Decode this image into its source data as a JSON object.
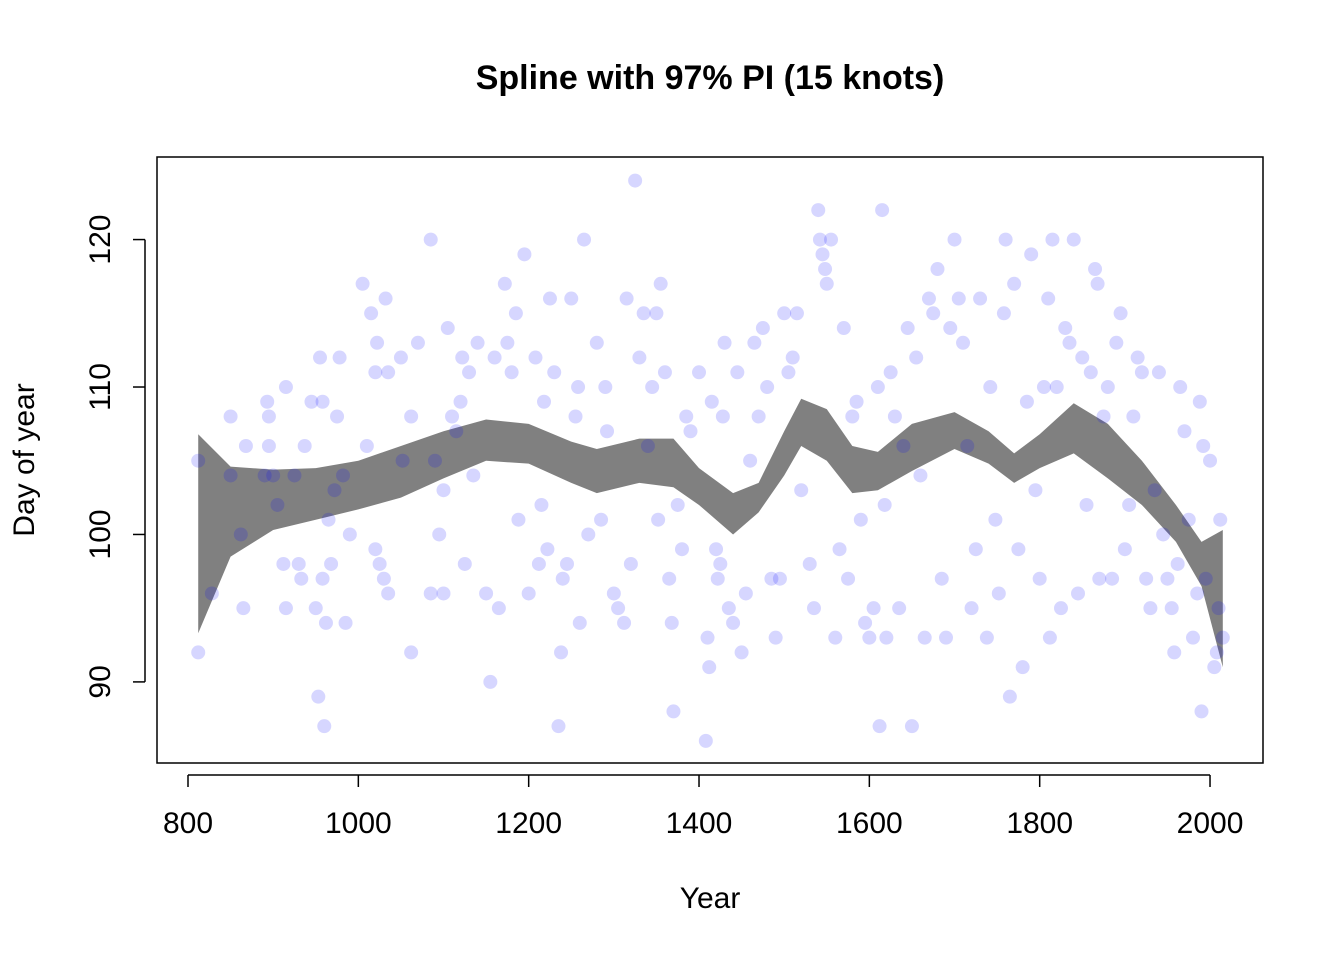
{
  "chart_data": {
    "type": "scatter",
    "title": "Spline with 97% PI (15 knots)",
    "x_label": "Year",
    "y_label": "Day of year",
    "xlim": [
      763.6,
      2062.2
    ],
    "ylim": [
      84.5,
      125.6
    ],
    "xticks": [
      800,
      1000,
      1200,
      1400,
      1600,
      1800,
      2000
    ],
    "yticks": [
      90,
      100,
      110,
      120
    ],
    "grid": false,
    "band": {
      "color": "#808080",
      "x": [
        812,
        850,
        900,
        950,
        1000,
        1050,
        1100,
        1150,
        1200,
        1250,
        1280,
        1330,
        1370,
        1400,
        1440,
        1470,
        1500,
        1520,
        1550,
        1580,
        1610,
        1650,
        1700,
        1740,
        1770,
        1800,
        1840,
        1880,
        1920,
        1960,
        1990,
        2015
      ],
      "lower": [
        93.3,
        98.5,
        100.3,
        101.0,
        101.7,
        102.5,
        103.8,
        105.0,
        104.8,
        103.5,
        102.8,
        103.5,
        103.2,
        102.0,
        100.0,
        101.5,
        104.0,
        106.0,
        105.0,
        102.8,
        103.0,
        104.3,
        105.8,
        104.8,
        103.5,
        104.5,
        105.5,
        103.8,
        102.0,
        99.5,
        96.5,
        91.0
      ],
      "upper": [
        106.8,
        104.6,
        104.4,
        104.5,
        105.0,
        106.0,
        107.0,
        107.8,
        107.5,
        106.3,
        105.8,
        106.5,
        106.5,
        104.5,
        102.8,
        103.5,
        107.0,
        109.2,
        108.5,
        106.0,
        105.6,
        107.5,
        108.3,
        107.0,
        105.5,
        106.8,
        108.9,
        107.5,
        105.0,
        102.0,
        99.5,
        100.3
      ]
    },
    "points": {
      "color": "#0000ff",
      "x": [
        812,
        812,
        828,
        850,
        850,
        862,
        865,
        868,
        890,
        893,
        895,
        895,
        900,
        905,
        912,
        915,
        915,
        925,
        930,
        933,
        937,
        945,
        950,
        953,
        955,
        958,
        958,
        960,
        962,
        965,
        968,
        972,
        975,
        978,
        982,
        985,
        990,
        1005,
        1010,
        1015,
        1020,
        1020,
        1022,
        1025,
        1030,
        1032,
        1035,
        1035,
        1050,
        1052,
        1062,
        1062,
        1070,
        1085,
        1085,
        1090,
        1095,
        1100,
        1100,
        1105,
        1110,
        1115,
        1120,
        1122,
        1125,
        1130,
        1135,
        1140,
        1150,
        1155,
        1160,
        1165,
        1172,
        1175,
        1180,
        1185,
        1188,
        1195,
        1200,
        1208,
        1212,
        1215,
        1218,
        1222,
        1225,
        1230,
        1235,
        1238,
        1240,
        1245,
        1250,
        1255,
        1258,
        1260,
        1265,
        1270,
        1280,
        1285,
        1290,
        1292,
        1300,
        1305,
        1312,
        1315,
        1320,
        1325,
        1330,
        1335,
        1340,
        1345,
        1350,
        1352,
        1355,
        1360,
        1365,
        1368,
        1370,
        1375,
        1380,
        1385,
        1390,
        1400,
        1408,
        1410,
        1412,
        1415,
        1420,
        1422,
        1425,
        1428,
        1430,
        1435,
        1440,
        1445,
        1450,
        1455,
        1460,
        1465,
        1470,
        1475,
        1480,
        1485,
        1490,
        1495,
        1500,
        1505,
        1510,
        1515,
        1520,
        1530,
        1535,
        1540,
        1542,
        1545,
        1548,
        1550,
        1555,
        1560,
        1565,
        1570,
        1575,
        1580,
        1585,
        1590,
        1595,
        1600,
        1605,
        1610,
        1612,
        1615,
        1618,
        1620,
        1625,
        1630,
        1635,
        1640,
        1645,
        1650,
        1655,
        1660,
        1665,
        1670,
        1675,
        1680,
        1685,
        1690,
        1695,
        1700,
        1705,
        1710,
        1715,
        1720,
        1725,
        1730,
        1738,
        1742,
        1748,
        1752,
        1758,
        1760,
        1765,
        1770,
        1775,
        1780,
        1785,
        1790,
        1795,
        1800,
        1805,
        1810,
        1812,
        1815,
        1820,
        1825,
        1830,
        1835,
        1840,
        1845,
        1850,
        1855,
        1860,
        1865,
        1868,
        1870,
        1875,
        1880,
        1885,
        1890,
        1895,
        1900,
        1905,
        1910,
        1915,
        1920,
        1925,
        1930,
        1935,
        1940,
        1945,
        1950,
        1955,
        1958,
        1962,
        1965,
        1970,
        1975,
        1980,
        1985,
        1988,
        1990,
        1992,
        1995,
        2000,
        2005,
        2008,
        2010,
        2012,
        2015
      ],
      "y": [
        92,
        105,
        96,
        108,
        104,
        100,
        95,
        106,
        104,
        109,
        108,
        106,
        104,
        102,
        98,
        110,
        95,
        104,
        98,
        97,
        106,
        109,
        95,
        89,
        112,
        109,
        97,
        87,
        94,
        101,
        98,
        103,
        108,
        112,
        104,
        94,
        100,
        117,
        106,
        115,
        99,
        111,
        113,
        98,
        97,
        116,
        111,
        96,
        112,
        105,
        92,
        108,
        113,
        120,
        96,
        105,
        100,
        96,
        103,
        114,
        108,
        107,
        109,
        112,
        98,
        111,
        104,
        113,
        96,
        90,
        112,
        95,
        117,
        113,
        111,
        115,
        101,
        119,
        96,
        112,
        98,
        102,
        109,
        99,
        116,
        111,
        87,
        92,
        97,
        98,
        116,
        108,
        110,
        94,
        120,
        100,
        113,
        101,
        110,
        107,
        96,
        95,
        94,
        116,
        98,
        124,
        112,
        115,
        106,
        110,
        115,
        101,
        117,
        111,
        97,
        94,
        88,
        102,
        99,
        108,
        107,
        111,
        86,
        93,
        91,
        109,
        99,
        97,
        98,
        108,
        113,
        95,
        94,
        111,
        92,
        96,
        105,
        113,
        108,
        114,
        110,
        97,
        93,
        97,
        115,
        111,
        112,
        115,
        103,
        98,
        95,
        122,
        120,
        119,
        118,
        117,
        120,
        93,
        99,
        114,
        97,
        108,
        109,
        101,
        94,
        93,
        95,
        110,
        87,
        122,
        102,
        93,
        111,
        108,
        95,
        106,
        114,
        87,
        112,
        104,
        93,
        116,
        115,
        118,
        97,
        93,
        114,
        120,
        116,
        113,
        106,
        95,
        99,
        116,
        93,
        110,
        101,
        96,
        115,
        120,
        89,
        117,
        99,
        91,
        109,
        119,
        103,
        97,
        110,
        116,
        93,
        120,
        110,
        95,
        114,
        113,
        120,
        96,
        112,
        102,
        111,
        118,
        117,
        97,
        108,
        110,
        97,
        113,
        115,
        99,
        102,
        108,
        112,
        111,
        97,
        95,
        103,
        111,
        100,
        97,
        95,
        92,
        98,
        110,
        107,
        101,
        93,
        96,
        109,
        88,
        106,
        97,
        105,
        91,
        92,
        95,
        101,
        93
      ]
    }
  }
}
